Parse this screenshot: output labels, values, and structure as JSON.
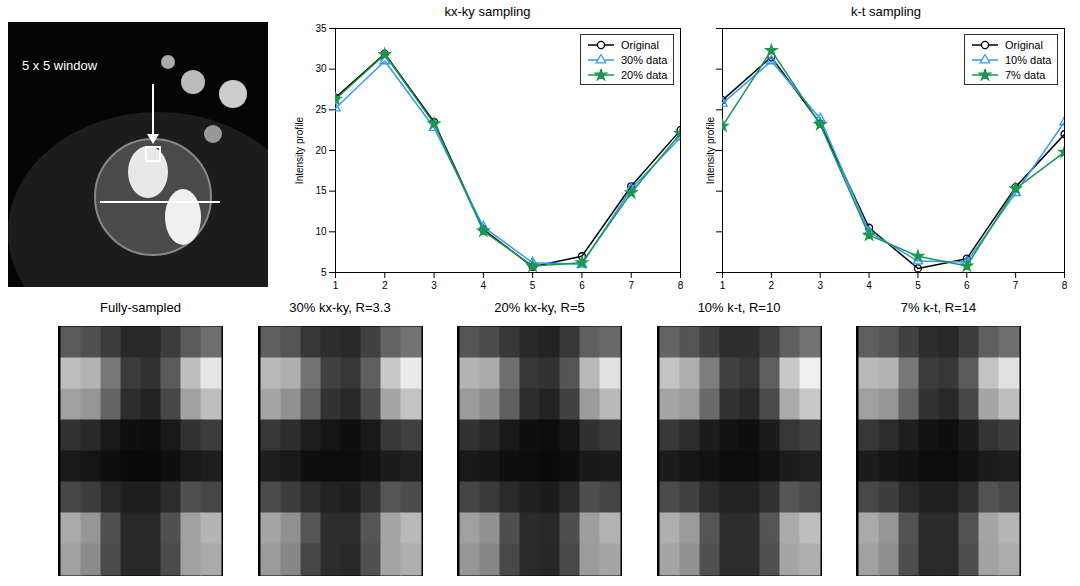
{
  "image": {
    "annotation": "5 x 5 window"
  },
  "chart_data": [
    {
      "type": "line",
      "title": "kx-ky sampling",
      "y_label": "Intensity profile",
      "x": [
        1,
        2,
        3,
        4,
        5,
        6,
        7,
        8
      ],
      "xlim": [
        1,
        8
      ],
      "xticks": [
        1,
        2,
        3,
        4,
        5,
        6,
        7,
        8
      ],
      "ylim": [
        5,
        35
      ],
      "yticks": [
        5,
        10,
        15,
        20,
        25,
        30,
        35
      ],
      "grid": false,
      "legend": "upper right",
      "series": [
        {
          "name": "Original",
          "color": "#000000",
          "marker": "circle",
          "values": [
            26.5,
            31.9,
            23.5,
            10.3,
            5.7,
            7.0,
            15.6,
            22.5
          ]
        },
        {
          "name": "30% data",
          "color": "#3399ff",
          "marker": "triangle",
          "values": [
            25.2,
            31.0,
            22.8,
            10.6,
            6.2,
            6.0,
            15.3,
            21.6
          ]
        },
        {
          "name": "20% data",
          "color": "#1a9850",
          "marker": "star",
          "values": [
            26.3,
            31.8,
            23.3,
            10.1,
            5.8,
            6.2,
            14.8,
            22.1
          ]
        }
      ]
    },
    {
      "type": "line",
      "title": "k-t sampling",
      "y_label": "Intensity profile",
      "x": [
        1,
        2,
        3,
        4,
        5,
        6,
        7,
        8
      ],
      "xlim": [
        1,
        8
      ],
      "xticks": [
        1,
        2,
        3,
        4,
        5,
        6,
        7,
        8
      ],
      "ylim": [
        5,
        35
      ],
      "yticks": [
        5,
        10,
        15,
        20,
        25,
        30,
        35
      ],
      "grid": false,
      "legend": "upper right",
      "tick_labels": "x",
      "series": [
        {
          "name": "Original",
          "color": "#000000",
          "marker": "circle",
          "values": [
            26.2,
            31.5,
            23.3,
            10.5,
            5.5,
            6.7,
            15.5,
            22.0
          ]
        },
        {
          "name": "10% data",
          "color": "#3399ff",
          "marker": "triangle",
          "values": [
            25.8,
            31.0,
            23.9,
            10.0,
            6.4,
            6.3,
            14.8,
            23.5
          ]
        },
        {
          "name": "7% data",
          "color": "#1a9850",
          "marker": "star",
          "values": [
            23.0,
            32.3,
            23.2,
            9.6,
            7.0,
            5.8,
            15.3,
            19.8
          ]
        }
      ]
    },
    {
      "type": "heatmap",
      "title": "Fully-sampled",
      "tick_labels": false,
      "zlim": [
        0,
        255
      ],
      "cells": [
        [
          90,
          80,
          60,
          40,
          40,
          60,
          90,
          110
        ],
        [
          190,
          180,
          120,
          60,
          50,
          90,
          190,
          230
        ],
        [
          160,
          150,
          100,
          45,
          35,
          70,
          160,
          190
        ],
        [
          50,
          40,
          25,
          15,
          12,
          25,
          50,
          60
        ],
        [
          25,
          20,
          15,
          10,
          10,
          15,
          25,
          30
        ],
        [
          70,
          60,
          40,
          30,
          30,
          45,
          80,
          70
        ],
        [
          170,
          150,
          80,
          40,
          40,
          80,
          160,
          180
        ],
        [
          160,
          140,
          75,
          40,
          40,
          75,
          160,
          170
        ]
      ]
    },
    {
      "type": "heatmap",
      "title": "30% kx-ky, R=3.3",
      "tick_labels": false,
      "zlim": [
        0,
        255
      ],
      "cells": [
        [
          95,
          85,
          55,
          45,
          40,
          65,
          100,
          115
        ],
        [
          185,
          175,
          115,
          65,
          55,
          95,
          200,
          235
        ],
        [
          165,
          145,
          95,
          50,
          40,
          75,
          165,
          195
        ],
        [
          55,
          45,
          30,
          20,
          15,
          25,
          55,
          65
        ],
        [
          30,
          25,
          15,
          12,
          12,
          18,
          28,
          32
        ],
        [
          75,
          60,
          45,
          35,
          30,
          50,
          85,
          75
        ],
        [
          165,
          145,
          85,
          45,
          45,
          85,
          165,
          185
        ],
        [
          155,
          135,
          70,
          45,
          40,
          80,
          165,
          175
        ]
      ]
    },
    {
      "type": "heatmap",
      "title": "20% kx-ky, R=5",
      "tick_labels": false,
      "zlim": [
        0,
        255
      ],
      "cells": [
        [
          85,
          75,
          55,
          40,
          35,
          55,
          95,
          105
        ],
        [
          180,
          170,
          110,
          55,
          50,
          85,
          185,
          225
        ],
        [
          155,
          140,
          95,
          45,
          35,
          65,
          155,
          185
        ],
        [
          50,
          40,
          25,
          15,
          12,
          22,
          48,
          58
        ],
        [
          25,
          22,
          15,
          12,
          10,
          15,
          24,
          28
        ],
        [
          68,
          58,
          42,
          32,
          28,
          42,
          78,
          68
        ],
        [
          160,
          145,
          78,
          42,
          40,
          78,
          158,
          178
        ],
        [
          150,
          135,
          72,
          42,
          38,
          72,
          155,
          165
        ]
      ]
    },
    {
      "type": "heatmap",
      "title": "10% k-t, R=10",
      "tick_labels": false,
      "zlim": [
        0,
        255
      ],
      "cells": [
        [
          100,
          85,
          65,
          45,
          45,
          65,
          95,
          115
        ],
        [
          195,
          175,
          125,
          65,
          55,
          95,
          200,
          240
        ],
        [
          165,
          155,
          105,
          50,
          40,
          75,
          170,
          200
        ],
        [
          55,
          45,
          28,
          18,
          15,
          28,
          55,
          65
        ],
        [
          28,
          22,
          18,
          12,
          12,
          18,
          28,
          32
        ],
        [
          75,
          65,
          45,
          35,
          35,
          50,
          85,
          75
        ],
        [
          175,
          155,
          85,
          45,
          45,
          85,
          170,
          190
        ],
        [
          165,
          145,
          80,
          45,
          45,
          80,
          165,
          175
        ]
      ]
    },
    {
      "type": "heatmap",
      "title": "7% k-t, R=14",
      "tick_labels": false,
      "zlim": [
        0,
        255
      ],
      "cells": [
        [
          95,
          85,
          65,
          45,
          40,
          60,
          95,
          110
        ],
        [
          185,
          180,
          120,
          60,
          55,
          90,
          195,
          225
        ],
        [
          160,
          150,
          100,
          50,
          40,
          70,
          165,
          190
        ],
        [
          55,
          45,
          30,
          18,
          15,
          28,
          52,
          62
        ],
        [
          28,
          22,
          18,
          12,
          12,
          18,
          28,
          30
        ],
        [
          72,
          62,
          42,
          32,
          32,
          48,
          82,
          72
        ],
        [
          170,
          150,
          82,
          42,
          42,
          82,
          165,
          182
        ],
        [
          160,
          142,
          78,
          42,
          42,
          78,
          162,
          172
        ]
      ]
    }
  ]
}
